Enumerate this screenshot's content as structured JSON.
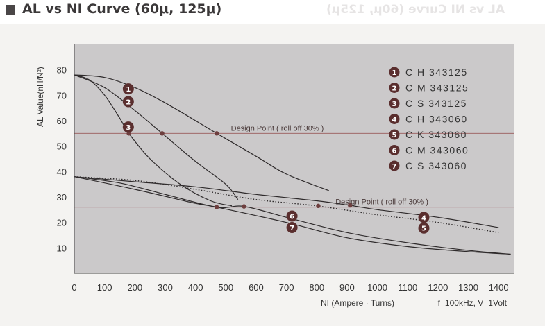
{
  "page": {
    "title": "AL vs NI Curve (60μ, 125μ)"
  },
  "chart_data": {
    "type": "line",
    "title": "AL vs NI Curve (60μ, 125μ)",
    "xlabel": "NI (Ampere · Turns)",
    "ylabel": "AL Value(nH/N²)",
    "condition": "f=100kHz, V=1Volt",
    "xlim": [
      0,
      1450
    ],
    "ylim": [
      0,
      90
    ],
    "x_ticks": [
      0,
      100,
      200,
      300,
      400,
      500,
      600,
      700,
      800,
      900,
      1000,
      1100,
      1200,
      1300,
      1400
    ],
    "y_ticks": [
      10,
      20,
      30,
      40,
      50,
      60,
      70,
      80
    ],
    "grid": false,
    "legend_position": "top-right",
    "legend": [
      {
        "badge": "1",
        "label": "C H 343125"
      },
      {
        "badge": "2",
        "label": "C M 343125"
      },
      {
        "badge": "3",
        "label": "C S 343125"
      },
      {
        "badge": "4",
        "label": "C H 343060"
      },
      {
        "badge": "5",
        "label": "C K 343060"
      },
      {
        "badge": "6",
        "label": "C M 343060"
      },
      {
        "badge": "7",
        "label": "C S 343060"
      }
    ],
    "design_points": [
      {
        "label": "Design Point ( roll off 30% )",
        "y": 55
      },
      {
        "label": "Design Point ( roll off 30% )",
        "y": 26
      }
    ],
    "series": [
      {
        "id": "1",
        "style": "solid",
        "points": [
          [
            0,
            78
          ],
          [
            100,
            77
          ],
          [
            200,
            73
          ],
          [
            300,
            67
          ],
          [
            400,
            60
          ],
          [
            470,
            55
          ],
          [
            600,
            46
          ],
          [
            700,
            39
          ],
          [
            840,
            32.5
          ]
        ]
      },
      {
        "id": "2",
        "style": "solid",
        "points": [
          [
            0,
            78
          ],
          [
            100,
            73
          ],
          [
            200,
            64
          ],
          [
            290,
            55
          ],
          [
            400,
            44
          ],
          [
            500,
            35
          ],
          [
            540,
            29
          ]
        ]
      },
      {
        "id": "3",
        "style": "solid",
        "points": [
          [
            0,
            78
          ],
          [
            50,
            76
          ],
          [
            100,
            70
          ],
          [
            150,
            61
          ],
          [
            180,
            55
          ],
          [
            250,
            45
          ],
          [
            350,
            35
          ],
          [
            450,
            28.5
          ],
          [
            520,
            26.5
          ]
        ]
      },
      {
        "id": "4",
        "style": "solid",
        "points": [
          [
            0,
            38
          ],
          [
            200,
            36
          ],
          [
            400,
            34
          ],
          [
            600,
            31
          ],
          [
            800,
            28.5
          ],
          [
            910,
            26.7
          ],
          [
            1000,
            25
          ],
          [
            1200,
            22
          ],
          [
            1400,
            18
          ]
        ]
      },
      {
        "id": "5",
        "style": "dotted",
        "points": [
          [
            0,
            38
          ],
          [
            200,
            36.5
          ],
          [
            400,
            33
          ],
          [
            600,
            29
          ],
          [
            800,
            26.5
          ],
          [
            1000,
            23
          ],
          [
            1200,
            20
          ],
          [
            1400,
            16
          ]
        ]
      },
      {
        "id": "6",
        "style": "solid",
        "points": [
          [
            0,
            38
          ],
          [
            150,
            35.5
          ],
          [
            300,
            31
          ],
          [
            470,
            26
          ],
          [
            560,
            26.3
          ],
          [
            700,
            22
          ],
          [
            900,
            16
          ],
          [
            1100,
            12
          ],
          [
            1300,
            9
          ],
          [
            1440,
            7.5
          ]
        ]
      },
      {
        "id": "7",
        "style": "solid",
        "points": [
          [
            0,
            38
          ],
          [
            200,
            33
          ],
          [
            400,
            27.5
          ],
          [
            470,
            26
          ],
          [
            700,
            20
          ],
          [
            900,
            14
          ],
          [
            1100,
            10.5
          ],
          [
            1300,
            8.5
          ],
          [
            1440,
            7.5
          ]
        ]
      }
    ],
    "markers": [
      {
        "x": 180,
        "y": 55
      },
      {
        "x": 290,
        "y": 55
      },
      {
        "x": 470,
        "y": 55
      },
      {
        "x": 470,
        "y": 26
      },
      {
        "x": 560,
        "y": 26.3
      },
      {
        "x": 805,
        "y": 26.5
      },
      {
        "x": 910,
        "y": 26.7
      }
    ],
    "curve_labels": [
      {
        "badge": "1",
        "x": 160,
        "y": 72.5
      },
      {
        "badge": "2",
        "x": 160,
        "y": 67.5
      },
      {
        "badge": "3",
        "x": 160,
        "y": 57.5
      },
      {
        "badge": "4",
        "x": 1135,
        "y": 22
      },
      {
        "badge": "5",
        "x": 1135,
        "y": 17.8
      },
      {
        "badge": "6",
        "x": 700,
        "y": 22.5
      },
      {
        "badge": "7",
        "x": 700,
        "y": 18
      }
    ]
  }
}
